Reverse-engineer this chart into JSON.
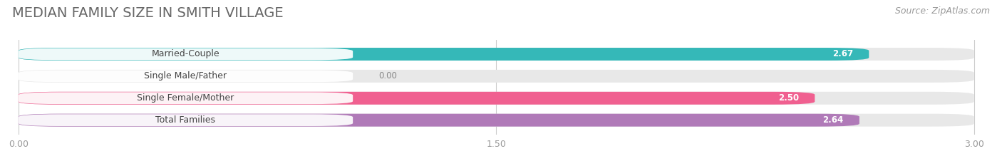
{
  "title": "MEDIAN FAMILY SIZE IN SMITH VILLAGE",
  "source": "Source: ZipAtlas.com",
  "categories": [
    "Married-Couple",
    "Single Male/Father",
    "Single Female/Mother",
    "Total Families"
  ],
  "values": [
    2.67,
    0.0,
    2.5,
    2.64
  ],
  "bar_colors": [
    "#35b8b8",
    "#aab4e8",
    "#f06090",
    "#b07ab8"
  ],
  "bar_bg_color": "#e8e8e8",
  "xlim_max": 3.0,
  "xticks": [
    0.0,
    1.5,
    3.0
  ],
  "xtick_labels": [
    "0.00",
    "1.50",
    "3.00"
  ],
  "title_color": "#666666",
  "source_color": "#999999",
  "title_fontsize": 14,
  "source_fontsize": 9,
  "bar_height": 0.58,
  "figsize": [
    14.06,
    2.33
  ],
  "dpi": 100,
  "label_fontsize": 9,
  "value_fontsize": 8.5,
  "bg_color": "#ffffff"
}
